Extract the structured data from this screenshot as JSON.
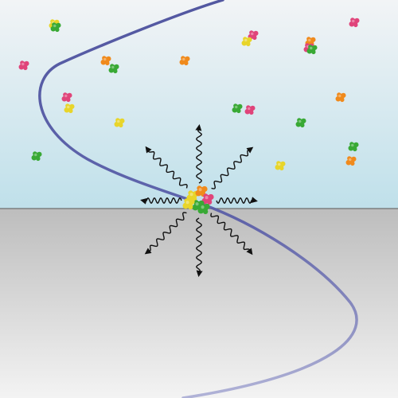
{
  "colors": {
    "upper_top": "#f2f4f6",
    "upper_bottom": "#bfe0ea",
    "lower_top": "#bdbdbd",
    "lower_bottom": "#f3f3f3",
    "interface_line": "#6f6f6f",
    "wave": "#4a4f9c",
    "arrow": "#111111",
    "particle_orange": "#f08a1c",
    "particle_green": "#39a935",
    "particle_pink": "#e0447a",
    "particle_yellow": "#e8d52a"
  },
  "particles": {
    "colors": [
      "orange",
      "green",
      "pink",
      "yellow"
    ],
    "cluster_size": 6,
    "scattered_count": 22
  },
  "emission": {
    "arrow_count": 8,
    "arrow_icon": "wavy-arrow-icon"
  }
}
